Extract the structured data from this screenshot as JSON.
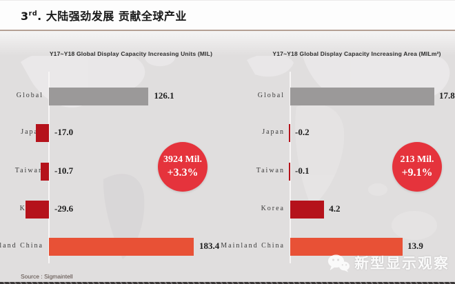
{
  "header": {
    "title_num": "3",
    "title_sup": "rd",
    "title_rest": ". 大陆强劲发展 贡献全球产业"
  },
  "chart_data": [
    {
      "type": "bar",
      "orientation": "horizontal",
      "title": "Y17~Y18 Global Display Capacity Increasing Units (MIL)",
      "categories": [
        "Global",
        "Japan",
        "Taiwan",
        "Korea",
        "Mainland China"
      ],
      "values": [
        126.1,
        -17.0,
        -10.7,
        -29.6,
        183.4
      ],
      "value_labels": [
        "126.1",
        "-17.0",
        "-10.7",
        "-29.6",
        "183.4"
      ],
      "badge": {
        "line1": "3924 Mil.",
        "line2": "+3.3%"
      },
      "xlim": [
        -40,
        200
      ],
      "grid": false,
      "legend": "none"
    },
    {
      "type": "bar",
      "orientation": "horizontal",
      "title": "Y17~Y18 Global Display Capacity Increasing Area (MILm²)",
      "categories": [
        "Global",
        "Japan",
        "Taiwan",
        "Korea",
        "Mainland China"
      ],
      "values": [
        17.8,
        -0.2,
        -0.1,
        4.2,
        13.9
      ],
      "value_labels": [
        "17.8",
        "-0.2",
        "-0.1",
        "4.2",
        "13.9"
      ],
      "badge": {
        "line1": "213 Mil.",
        "line2": "+9.1%"
      },
      "xlim": [
        -5,
        20
      ],
      "grid": false,
      "legend": "none"
    }
  ],
  "colors": {
    "bar_global": "#9b9999",
    "bar_negative": "#b5121b",
    "bar_china": "#e85136",
    "badge": "#e5333c",
    "header_line": "#b4a094",
    "background": "#e0dede"
  },
  "watermark": {
    "icon": "wechat-icon",
    "text": "新型显示观察"
  },
  "footer": {
    "source": "Source : Sigmaintell"
  }
}
